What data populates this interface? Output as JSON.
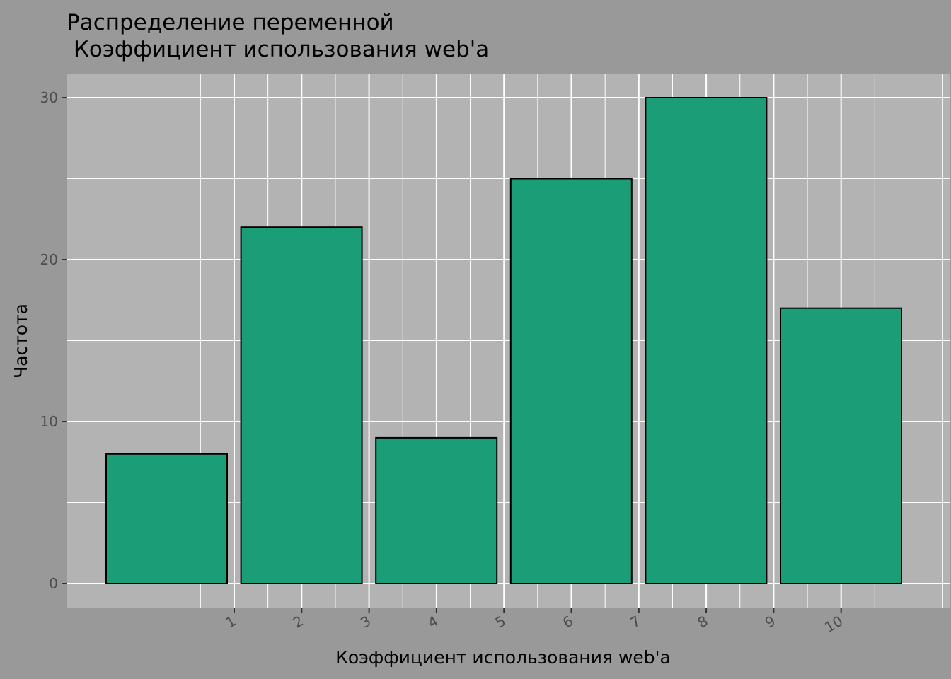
{
  "chart_data": {
    "type": "bar",
    "title_lines": [
      "Распределение переменной",
      " Коэффициент использования web'а"
    ],
    "xlabel": "Коэффициент использования web'а",
    "ylabel": "Частота",
    "values": [
      8,
      22,
      9,
      25,
      30,
      17
    ],
    "ylim": [
      0,
      31.5
    ],
    "y_ticks": [
      0,
      10,
      20,
      30
    ],
    "y_tick_labels": [
      "0",
      "10",
      "20",
      "30"
    ],
    "x_ticks": [
      1,
      2,
      3,
      4,
      5,
      6,
      7,
      8,
      9,
      10
    ],
    "x_tick_labels": [
      "1",
      "2",
      "3",
      "4",
      "5",
      "6",
      "7",
      "8",
      "9",
      "10"
    ],
    "grid": true,
    "colors": {
      "background": "#999999",
      "panel": "#b3b3b3",
      "grid": "#ffffff",
      "bar_fill": "#1b9e77",
      "bar_outline": "#000000",
      "text": "#000000",
      "tick_text": "#4d4d4d"
    }
  }
}
